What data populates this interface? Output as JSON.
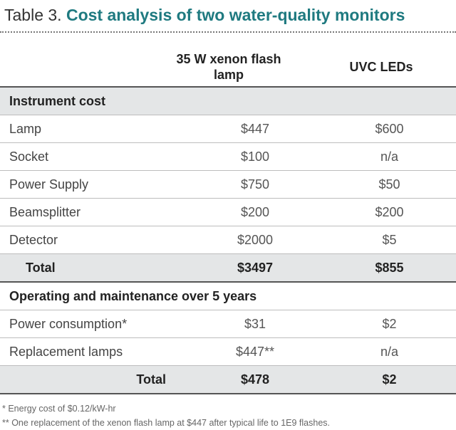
{
  "title": {
    "number": "Table 3.",
    "name": "Cost analysis of two water-quality monitors"
  },
  "columns": {
    "col1": "35 W xenon flash lamp",
    "col2": "UVC LEDs"
  },
  "instrument": {
    "heading": "Instrument cost",
    "rows": [
      {
        "label": "Lamp",
        "v1": "$447",
        "v2": "$600"
      },
      {
        "label": "Socket",
        "v1": "$100",
        "v2": "n/a"
      },
      {
        "label": "Power Supply",
        "v1": "$750",
        "v2": "$50"
      },
      {
        "label": "Beamsplitter",
        "v1": "$200",
        "v2": "$200"
      },
      {
        "label": "Detector",
        "v1": "$2000",
        "v2": "$5"
      }
    ],
    "total": {
      "label": "Total",
      "v1": "$3497",
      "v2": "$855"
    }
  },
  "operating": {
    "heading": "Operating and maintenance over 5 years",
    "rows": [
      {
        "label": "Power consumption*",
        "v1": "$31",
        "v2": "$2"
      },
      {
        "label": "Replacement lamps",
        "v1": "$447**",
        "v2": "n/a"
      }
    ],
    "total": {
      "label": "Total",
      "v1": "$478",
      "v2": "$2"
    }
  },
  "footnotes": [
    "* Energy cost of $0.12/kW-hr",
    "** One replacement of the xenon flash lamp at $447 after typical life to 1E9 flashes."
  ]
}
